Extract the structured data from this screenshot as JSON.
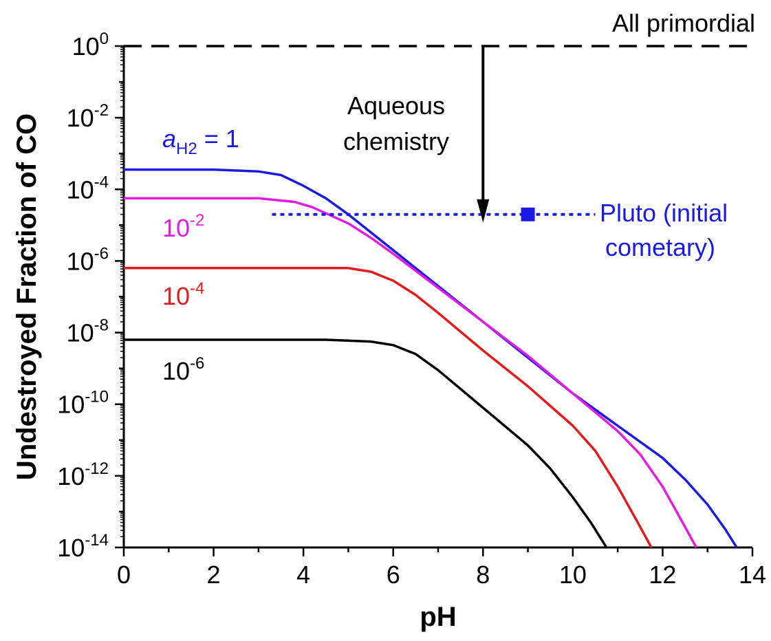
{
  "chart_data": {
    "type": "line",
    "title": "",
    "xlabel": "pH",
    "ylabel": "Undestroyed Fraction of CO",
    "xlim": [
      0,
      14
    ],
    "ylim_log10": [
      -14,
      0
    ],
    "yscale": "log",
    "grid": false,
    "x_ticks": [
      "0",
      "2",
      "4",
      "6",
      "8",
      "10",
      "12",
      "14"
    ],
    "y_tick_exponents": [
      "0",
      "-2",
      "-4",
      "-6",
      "-8",
      "-10",
      "-12",
      "-14"
    ],
    "y_tick_base": "10",
    "series": [
      {
        "name": "a_H2 = 1",
        "color": "#1a1ae6",
        "points": [
          [
            0,
            -3.45
          ],
          [
            2,
            -3.45
          ],
          [
            3,
            -3.5
          ],
          [
            3.5,
            -3.6
          ],
          [
            4,
            -3.9
          ],
          [
            4.5,
            -4.25
          ],
          [
            5,
            -4.7
          ],
          [
            6,
            -5.7
          ],
          [
            7,
            -6.7
          ],
          [
            8,
            -7.7
          ],
          [
            9,
            -8.7
          ],
          [
            10,
            -9.7
          ],
          [
            11,
            -10.6
          ],
          [
            12,
            -11.5
          ],
          [
            12.5,
            -12.1
          ],
          [
            13,
            -12.8
          ],
          [
            13.4,
            -13.5
          ],
          [
            13.65,
            -14
          ]
        ]
      },
      {
        "name": "10-2",
        "color": "#e61ae6",
        "points": [
          [
            0,
            -4.25
          ],
          [
            3,
            -4.25
          ],
          [
            3.8,
            -4.35
          ],
          [
            4.2,
            -4.5
          ],
          [
            5,
            -4.95
          ],
          [
            5.5,
            -5.35
          ],
          [
            6,
            -5.8
          ],
          [
            7,
            -6.75
          ],
          [
            8,
            -7.7
          ],
          [
            9,
            -8.65
          ],
          [
            10,
            -9.7
          ],
          [
            11,
            -10.75
          ],
          [
            11.5,
            -11.4
          ],
          [
            12,
            -12.3
          ],
          [
            12.4,
            -13.2
          ],
          [
            12.75,
            -14
          ]
        ]
      },
      {
        "name": "10-4",
        "color": "#e61a1a",
        "points": [
          [
            0,
            -6.2
          ],
          [
            5,
            -6.2
          ],
          [
            5.5,
            -6.3
          ],
          [
            6,
            -6.55
          ],
          [
            6.5,
            -6.95
          ],
          [
            7,
            -7.45
          ],
          [
            8,
            -8.5
          ],
          [
            9,
            -9.5
          ],
          [
            10,
            -10.6
          ],
          [
            10.5,
            -11.3
          ],
          [
            11,
            -12.3
          ],
          [
            11.4,
            -13.2
          ],
          [
            11.75,
            -14
          ]
        ]
      },
      {
        "name": "10-6",
        "color": "#000000",
        "points": [
          [
            0,
            -8.2
          ],
          [
            4.5,
            -8.2
          ],
          [
            5.5,
            -8.25
          ],
          [
            6,
            -8.35
          ],
          [
            6.5,
            -8.6
          ],
          [
            7,
            -9.05
          ],
          [
            8,
            -10.1
          ],
          [
            9,
            -11.15
          ],
          [
            9.5,
            -11.8
          ],
          [
            10,
            -12.6
          ],
          [
            10.4,
            -13.3
          ],
          [
            10.75,
            -14
          ]
        ]
      }
    ],
    "labels": {
      "series0_label_italic": "a",
      "series0_label_sub": "H2",
      "series0_label_rest": " = 1",
      "series1_base": "10",
      "series1_exp": "-2",
      "series2_base": "10",
      "series2_exp": "-4",
      "series3_base": "10",
      "series3_exp": "-6"
    },
    "reference_lines": [
      {
        "label": "All primordial",
        "y_log10": 0,
        "style": "dashed",
        "color": "#000000"
      },
      {
        "label_line1": "Pluto (initial",
        "label_line2": "cometary)",
        "y_log10": -4.7,
        "x_range": [
          3.3,
          10.5
        ],
        "style": "dotted",
        "color": "#1a1ae6",
        "marker": {
          "x": 9.0,
          "shape": "square"
        }
      }
    ],
    "annotations": [
      {
        "text_line1": "Aqueous",
        "text_line2": "chemistry",
        "arrow": {
          "x": 8.0,
          "from_log10": 0,
          "to_log10": -4.7
        }
      }
    ],
    "colors": {
      "blue": "#1a1ae6",
      "magenta": "#e61ae6",
      "red": "#e61a1a",
      "black": "#000000"
    }
  }
}
